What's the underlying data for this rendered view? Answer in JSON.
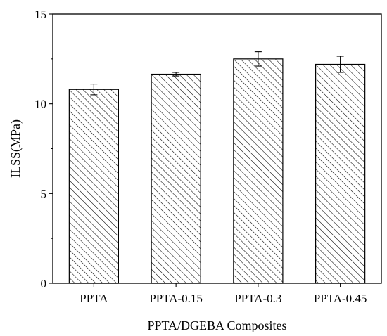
{
  "chart_data": {
    "type": "bar",
    "categories": [
      "PPTA",
      "PPTA-0.15",
      "PPTA-0.3",
      "PPTA-0.45"
    ],
    "values": [
      10.8,
      11.65,
      12.5,
      12.2
    ],
    "errors": [
      0.3,
      0.1,
      0.4,
      0.45
    ],
    "xlabel": "PPTA/DGEBA Composites",
    "ylabel": "ILSS(MPa)",
    "ylim": [
      0,
      15
    ],
    "yticks": [
      0,
      5,
      10,
      15
    ],
    "ytick_labels": [
      "0",
      "5",
      "10",
      "15"
    ],
    "grid": false,
    "bar_fill": "hatched diagonal lines",
    "bar_color": "#000000"
  }
}
